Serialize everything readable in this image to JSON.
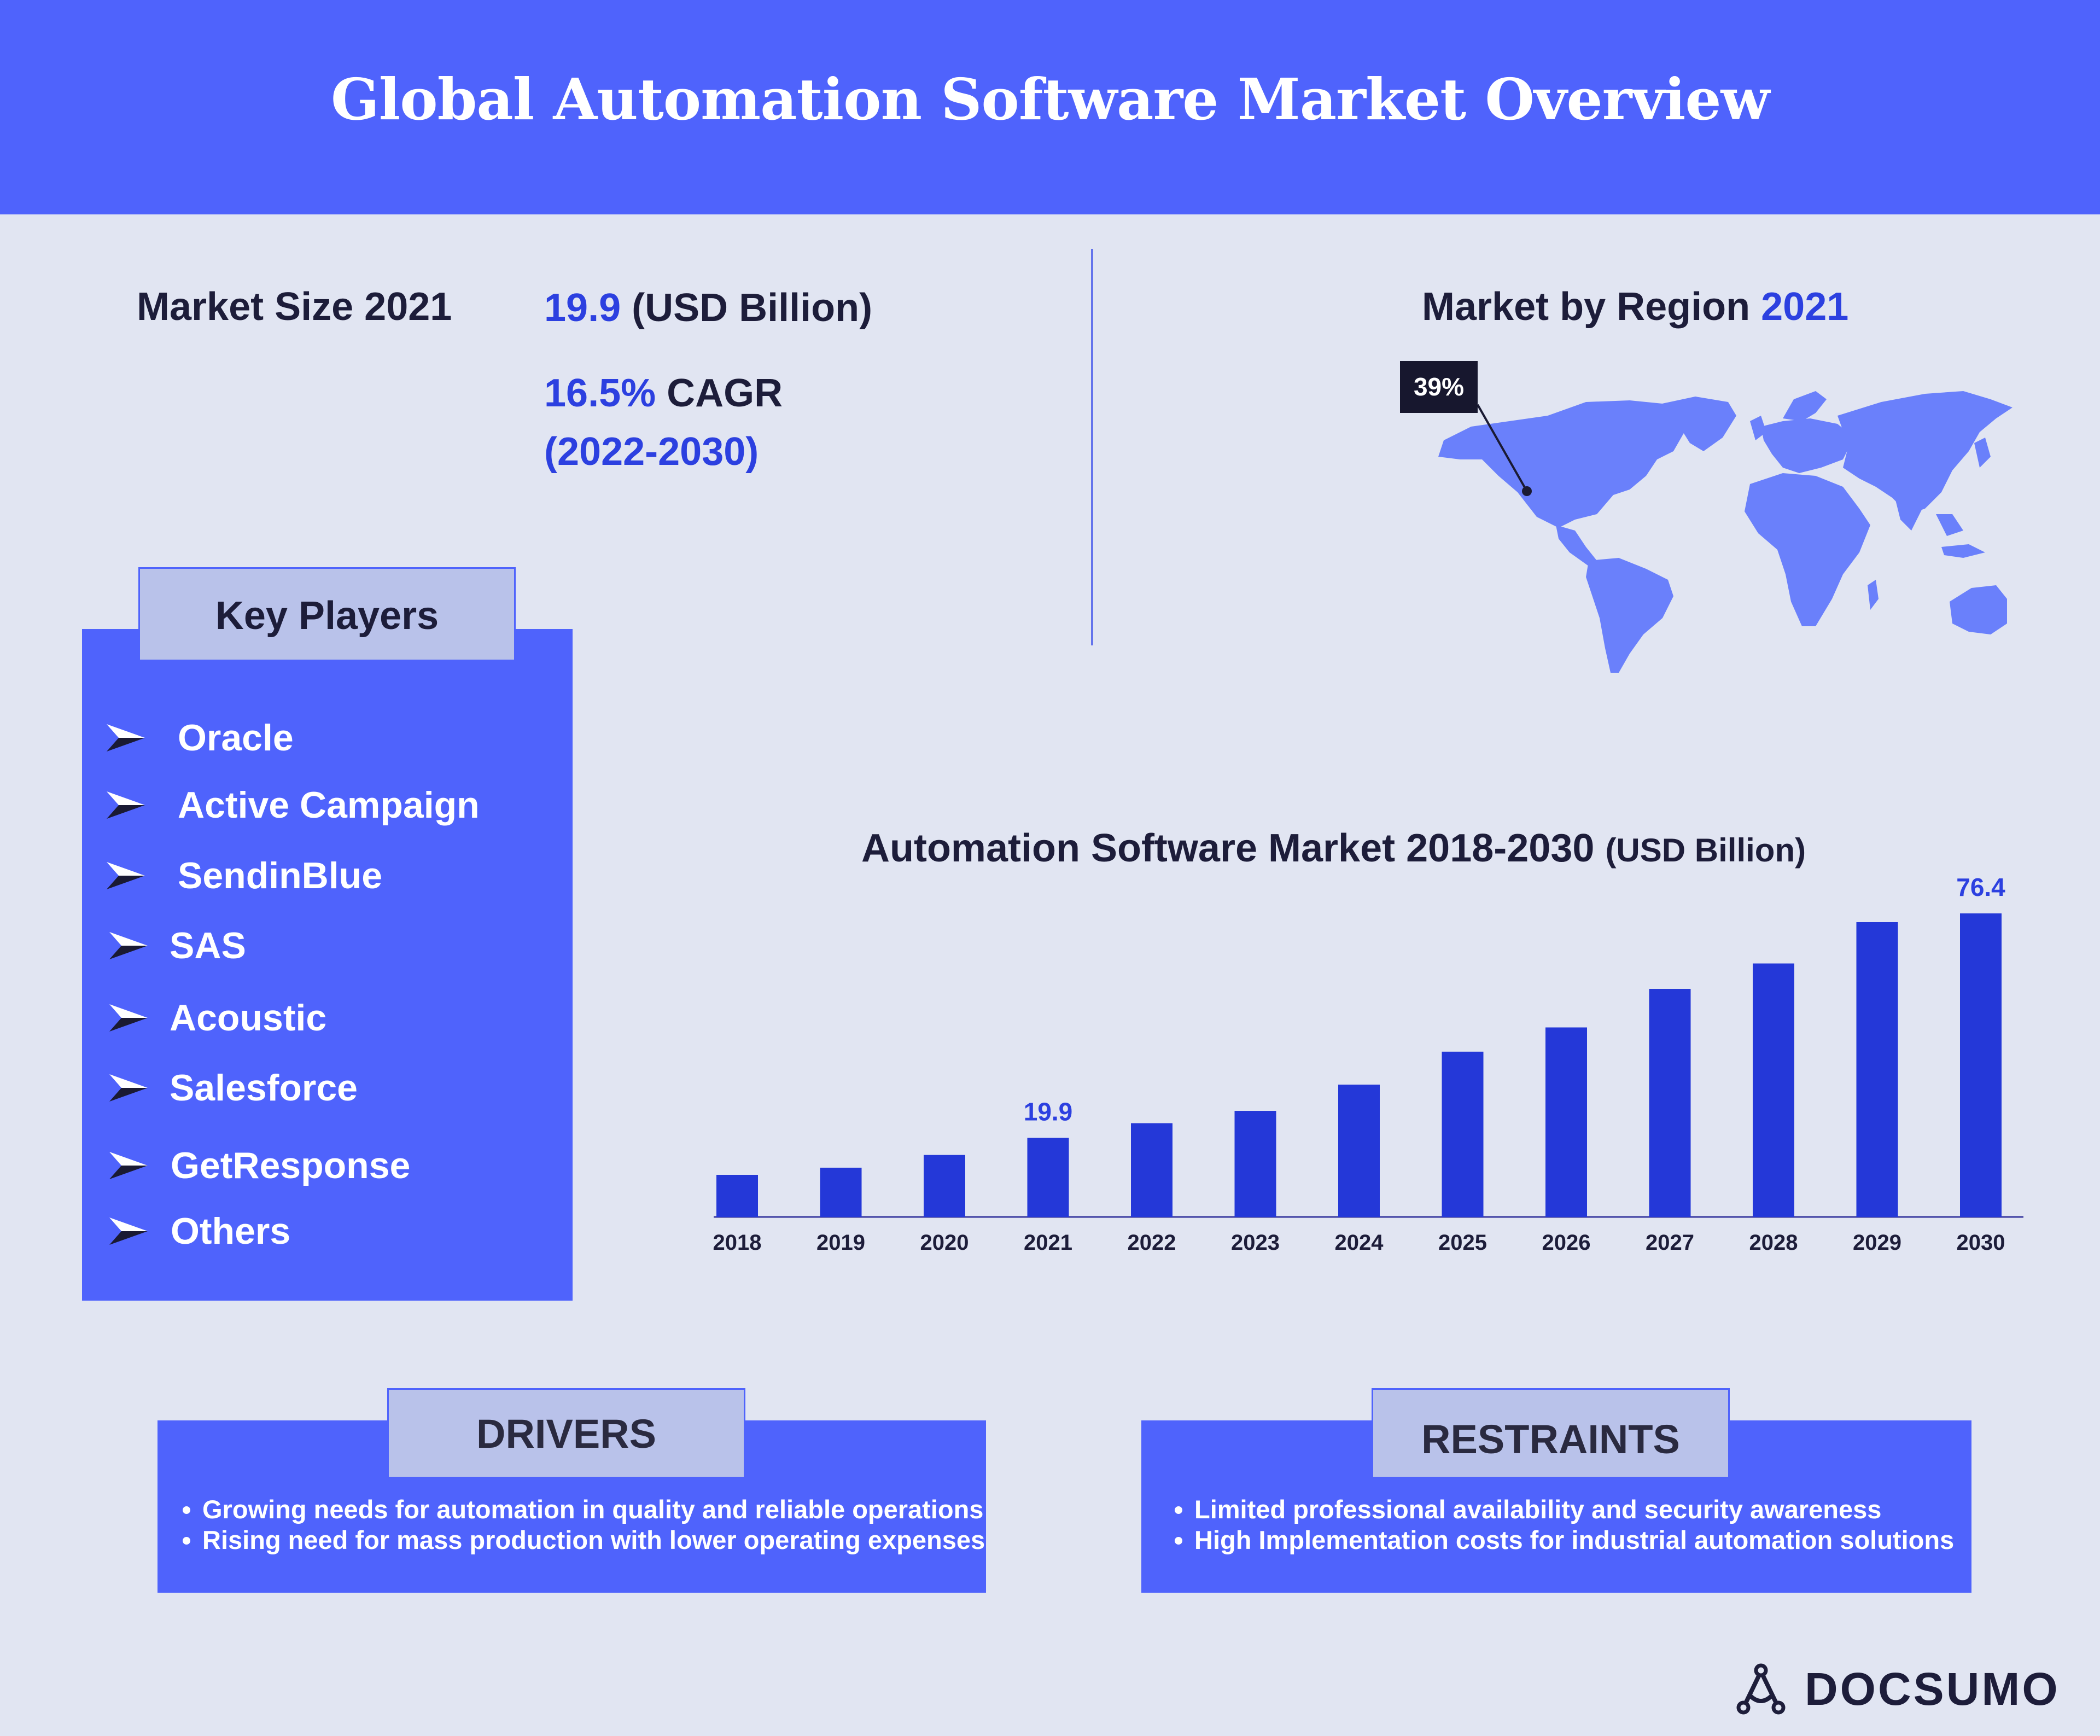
{
  "header": {
    "title": "Global Automation Software Market Overview"
  },
  "market_size": {
    "label": "Market Size 2021",
    "value": "19.9",
    "unit": "(USD Billion)",
    "cagr_value": "16.5%",
    "cagr_label": "CAGR",
    "cagr_period": "(2022-2030)"
  },
  "region": {
    "title": "Market by Region",
    "year": "2021",
    "callout": "39%"
  },
  "key_players": {
    "title": "Key Players",
    "items": [
      "Oracle",
      "Active Campaign",
      "SendinBlue",
      "SAS",
      "Acoustic",
      "Salesforce",
      "GetResponse",
      "Others"
    ]
  },
  "chart_data": {
    "type": "bar",
    "title": "Automation Software Market 2018-2030",
    "unit_label": "(USD Billion)",
    "categories": [
      "2018",
      "2019",
      "2020",
      "2021",
      "2022",
      "2023",
      "2024",
      "2025",
      "2026",
      "2027",
      "2028",
      "2029",
      "2030"
    ],
    "values": [
      10.6,
      12.4,
      15.6,
      19.9,
      23.6,
      26.7,
      33.3,
      41.6,
      47.7,
      57.4,
      63.8,
      74.2,
      76.4
    ],
    "data_labels": [
      {
        "category": "2021",
        "text": "19.9"
      },
      {
        "category": "2030",
        "text": "76.4"
      }
    ],
    "bar_color": "#2438d8",
    "grid": false
  },
  "drivers": {
    "title": "DRIVERS",
    "items": [
      "Growing needs for automation in quality and reliable operations",
      "Rising need for mass production with lower operating expenses"
    ]
  },
  "restraints": {
    "title": "RESTRAINTS",
    "items": [
      "Limited professional availability and security awareness",
      "High Implementation costs for industrial automation solutions"
    ]
  },
  "brand": {
    "name": "DOCSUMO"
  },
  "colors": {
    "background": "#e1e5f2",
    "accent": "#4f63fc",
    "tab": "#b9c2ea",
    "highlight_text": "#2c40e0",
    "dark_text": "#1d1d3a"
  },
  "icons": {
    "bullet": "paper-plane-arrow-icon",
    "brand_logo": "docsumo-logo-icon",
    "map": "world-map"
  }
}
